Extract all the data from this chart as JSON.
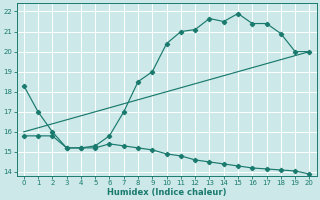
{
  "xlabel": "Humidex (Indice chaleur)",
  "background_color": "#cce8e8",
  "grid_color": "#ffffff",
  "line_color": "#1a7a6e",
  "xlim_min": -0.5,
  "xlim_max": 20.5,
  "ylim_min": 13.8,
  "ylim_max": 22.4,
  "xticks": [
    0,
    1,
    2,
    3,
    4,
    5,
    6,
    7,
    8,
    9,
    10,
    11,
    12,
    13,
    14,
    15,
    16,
    17,
    18,
    19,
    20
  ],
  "yticks": [
    14,
    15,
    16,
    17,
    18,
    19,
    20,
    21,
    22
  ],
  "line1_x": [
    0,
    1,
    2,
    3,
    4,
    5,
    6,
    7,
    8,
    9,
    10,
    11,
    12,
    13,
    14,
    15,
    16,
    17,
    18,
    19,
    20
  ],
  "line1_y": [
    18.3,
    17.0,
    16.0,
    15.2,
    15.2,
    15.3,
    15.8,
    17.0,
    18.5,
    19.0,
    20.4,
    21.0,
    21.1,
    21.65,
    21.5,
    21.9,
    21.4,
    21.4,
    20.9,
    20.0,
    20.0
  ],
  "line2_x": [
    0,
    20
  ],
  "line2_y": [
    16.0,
    20.0
  ],
  "line3_x": [
    0,
    1,
    2,
    3,
    4,
    5,
    6,
    7,
    8,
    9,
    10,
    11,
    12,
    13,
    14,
    15,
    16,
    17,
    18,
    19,
    20
  ],
  "line3_y": [
    15.8,
    15.8,
    15.8,
    15.2,
    15.2,
    15.2,
    15.4,
    15.3,
    15.2,
    15.1,
    14.9,
    14.8,
    14.6,
    14.5,
    14.4,
    14.3,
    14.2,
    14.15,
    14.1,
    14.05,
    13.9
  ]
}
